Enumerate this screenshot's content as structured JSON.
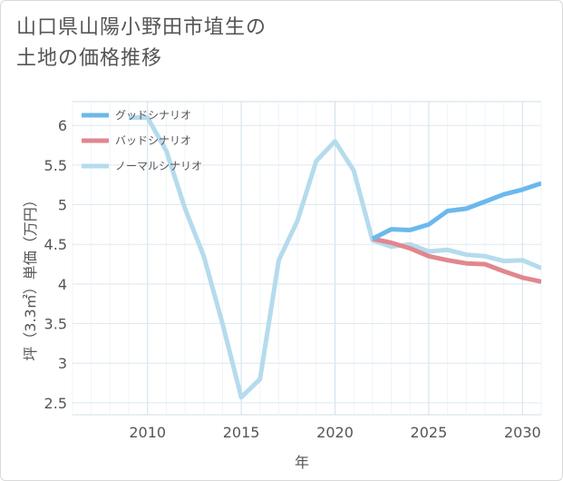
{
  "title_lines": [
    "山口県山陽小野田市埴生の",
    "土地の価格推移"
  ],
  "chart_data": {
    "type": "line",
    "title": "山口県山陽小野田市埴生の土地の価格推移",
    "xlabel": "年",
    "ylabel": "坪（3.3㎡）単価（万円）",
    "xlim": [
      2006,
      2031
    ],
    "ylim": [
      2.35,
      6.3
    ],
    "x_ticks": [
      2010,
      2015,
      2020,
      2025,
      2030
    ],
    "y_ticks": [
      2.5,
      3,
      3.5,
      4,
      4.5,
      5,
      5.5,
      6
    ],
    "grid": true,
    "legend_position": "top-left",
    "series": [
      {
        "name": "グッドシナリオ",
        "color": "#6cb8ec",
        "x": [
          2022,
          2023,
          2024,
          2025,
          2026,
          2027,
          2028,
          2029,
          2030,
          2031
        ],
        "y": [
          4.57,
          4.69,
          4.68,
          4.75,
          4.92,
          4.95,
          5.04,
          5.13,
          5.19,
          5.27
        ]
      },
      {
        "name": "バッドシナリオ",
        "color": "#e0878f",
        "x": [
          2022,
          2023,
          2024,
          2025,
          2026,
          2027,
          2028,
          2029,
          2030,
          2031
        ],
        "y": [
          4.57,
          4.52,
          4.45,
          4.35,
          4.3,
          4.26,
          4.25,
          4.16,
          4.08,
          4.03
        ]
      },
      {
        "name": "ノーマルシナリオ",
        "color": "#b5dbed",
        "x": [
          2009,
          2010,
          2011,
          2012,
          2013,
          2014,
          2015,
          2016,
          2017,
          2018,
          2019,
          2020,
          2021,
          2022,
          2023,
          2024,
          2025,
          2026,
          2027,
          2028,
          2029,
          2030,
          2031
        ],
        "y": [
          6.1,
          6.1,
          5.68,
          4.95,
          4.35,
          3.5,
          2.57,
          2.8,
          4.3,
          4.8,
          5.55,
          5.8,
          5.43,
          4.55,
          4.47,
          4.5,
          4.41,
          4.43,
          4.37,
          4.35,
          4.29,
          4.3,
          4.2
        ]
      }
    ]
  }
}
